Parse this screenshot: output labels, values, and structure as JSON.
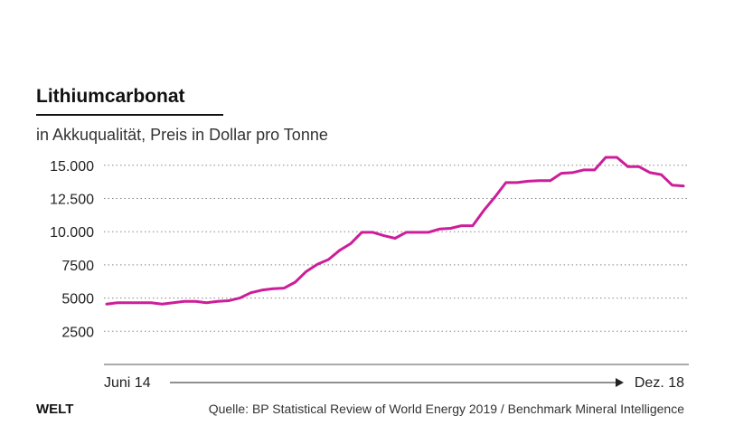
{
  "header": {
    "title": "Lithiumcarbonat",
    "subtitle": "in Akkuqualität, Preis in Dollar pro Tonne"
  },
  "footer": {
    "logo": "WELT",
    "source": "Quelle: BP Statistical Review of World Energy 2019 / Benchmark Mineral Intelligence"
  },
  "colors": {
    "line": "#cc1e99",
    "grid": "#888888",
    "text": "#222222"
  },
  "chart_data": {
    "type": "line",
    "title": "Lithiumcarbonat",
    "subtitle": "in Akkuqualität, Preis in Dollar pro Tonne",
    "x_start_label": "Juni 14",
    "x_end_label": "Dez. 18",
    "y_ticks": [
      15000,
      12500,
      10000,
      7500,
      5000,
      2500
    ],
    "y_tick_labels": [
      "15.000",
      "12.500",
      "10.000",
      "7500",
      "5000",
      "2500"
    ],
    "ylim": [
      0,
      15000
    ],
    "grid": "horizontal dotted",
    "series": [
      {
        "values": [
          4550,
          4650,
          4650,
          4650,
          4650,
          4550,
          4650,
          4750,
          4750,
          4650,
          4750,
          4800,
          5000,
          5400,
          5600,
          5700,
          5750,
          6200,
          7000,
          7550,
          7900,
          8600,
          9100,
          9950,
          9950,
          9700,
          9500,
          9950,
          9950,
          9950,
          10200,
          10250,
          10450,
          10450,
          11600,
          12600,
          13700,
          13700,
          13800,
          13850,
          13850,
          14400,
          14450,
          14650,
          14650,
          15600,
          15600,
          14900,
          14900,
          14450,
          14300,
          13500,
          13450
        ]
      }
    ]
  }
}
